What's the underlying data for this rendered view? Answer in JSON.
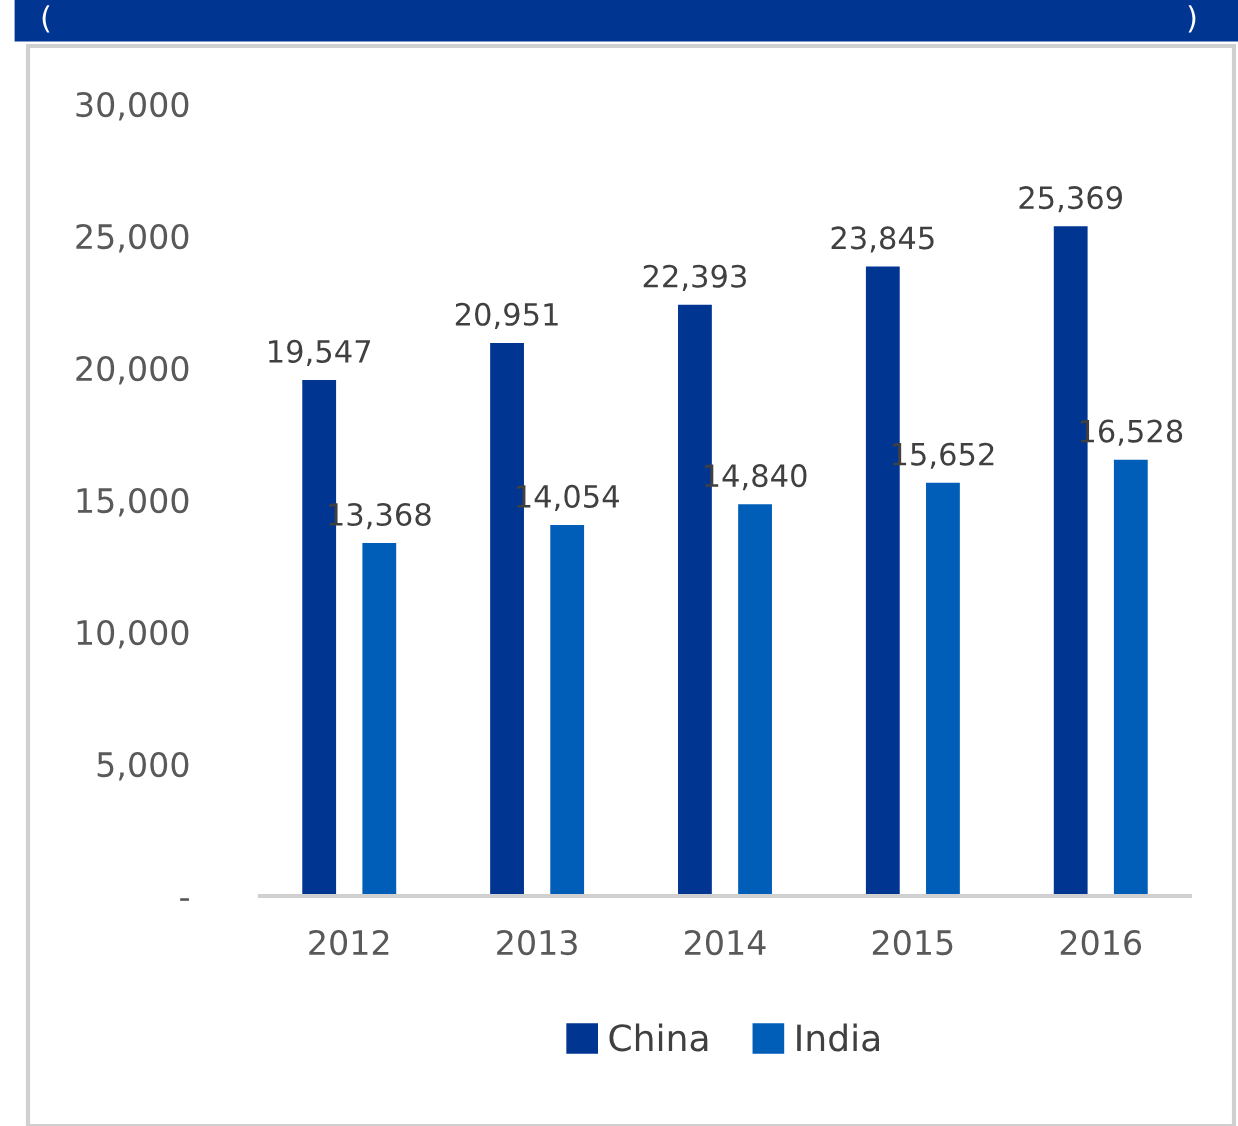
{
  "chart_data": {
    "type": "bar",
    "categories": [
      "2012",
      "2013",
      "2014",
      "2015",
      "2016"
    ],
    "series": [
      {
        "name": "China",
        "color": "#003591",
        "values": [
          19547,
          20951,
          22393,
          23845,
          25369
        ],
        "value_labels": [
          "19,547",
          "20,951",
          "22,393",
          "23,845",
          "25,369"
        ]
      },
      {
        "name": "India",
        "color": "#005eb8",
        "values": [
          13368,
          14054,
          14840,
          15652,
          16528
        ],
        "value_labels": [
          "13,368",
          "14,054",
          "14,840",
          "15,652",
          "16,528"
        ]
      }
    ],
    "ylim": [
      0,
      30000
    ],
    "yticks": [
      {
        "value": 0,
        "label": "-"
      },
      {
        "value": 5000,
        "label": "5,000"
      },
      {
        "value": 10000,
        "label": "10,000"
      },
      {
        "value": 15000,
        "label": "15,000"
      },
      {
        "value": 20000,
        "label": "20,000"
      },
      {
        "value": 25000,
        "label": "25,000"
      },
      {
        "value": 30000,
        "label": "30,000"
      }
    ],
    "grid": false,
    "legend": "bottom",
    "annotations": [
      "(",
      ")"
    ]
  }
}
